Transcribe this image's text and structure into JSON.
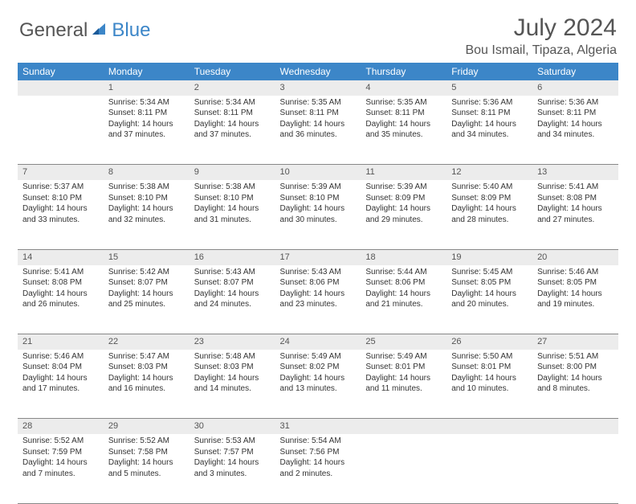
{
  "brand": {
    "general": "General",
    "blue": "Blue"
  },
  "title": "July 2024",
  "location": "Bou Ismail, Tipaza, Algeria",
  "weekdays": [
    "Sunday",
    "Monday",
    "Tuesday",
    "Wednesday",
    "Thursday",
    "Friday",
    "Saturday"
  ],
  "colors": {
    "header_bg": "#3c86c8",
    "header_text": "#ffffff",
    "daynum_bg": "#ececec",
    "body_text": "#333333",
    "title_text": "#555555",
    "rule": "#888888",
    "brand_blue": "#3c86c8",
    "brand_gray": "#555555"
  },
  "weeks": [
    {
      "nums": [
        "",
        "1",
        "2",
        "3",
        "4",
        "5",
        "6"
      ],
      "cells": [
        null,
        {
          "sunrise": "Sunrise: 5:34 AM",
          "sunset": "Sunset: 8:11 PM",
          "day1": "Daylight: 14 hours",
          "day2": "and 37 minutes."
        },
        {
          "sunrise": "Sunrise: 5:34 AM",
          "sunset": "Sunset: 8:11 PM",
          "day1": "Daylight: 14 hours",
          "day2": "and 37 minutes."
        },
        {
          "sunrise": "Sunrise: 5:35 AM",
          "sunset": "Sunset: 8:11 PM",
          "day1": "Daylight: 14 hours",
          "day2": "and 36 minutes."
        },
        {
          "sunrise": "Sunrise: 5:35 AM",
          "sunset": "Sunset: 8:11 PM",
          "day1": "Daylight: 14 hours",
          "day2": "and 35 minutes."
        },
        {
          "sunrise": "Sunrise: 5:36 AM",
          "sunset": "Sunset: 8:11 PM",
          "day1": "Daylight: 14 hours",
          "day2": "and 34 minutes."
        },
        {
          "sunrise": "Sunrise: 5:36 AM",
          "sunset": "Sunset: 8:11 PM",
          "day1": "Daylight: 14 hours",
          "day2": "and 34 minutes."
        }
      ]
    },
    {
      "nums": [
        "7",
        "8",
        "9",
        "10",
        "11",
        "12",
        "13"
      ],
      "cells": [
        {
          "sunrise": "Sunrise: 5:37 AM",
          "sunset": "Sunset: 8:10 PM",
          "day1": "Daylight: 14 hours",
          "day2": "and 33 minutes."
        },
        {
          "sunrise": "Sunrise: 5:38 AM",
          "sunset": "Sunset: 8:10 PM",
          "day1": "Daylight: 14 hours",
          "day2": "and 32 minutes."
        },
        {
          "sunrise": "Sunrise: 5:38 AM",
          "sunset": "Sunset: 8:10 PM",
          "day1": "Daylight: 14 hours",
          "day2": "and 31 minutes."
        },
        {
          "sunrise": "Sunrise: 5:39 AM",
          "sunset": "Sunset: 8:10 PM",
          "day1": "Daylight: 14 hours",
          "day2": "and 30 minutes."
        },
        {
          "sunrise": "Sunrise: 5:39 AM",
          "sunset": "Sunset: 8:09 PM",
          "day1": "Daylight: 14 hours",
          "day2": "and 29 minutes."
        },
        {
          "sunrise": "Sunrise: 5:40 AM",
          "sunset": "Sunset: 8:09 PM",
          "day1": "Daylight: 14 hours",
          "day2": "and 28 minutes."
        },
        {
          "sunrise": "Sunrise: 5:41 AM",
          "sunset": "Sunset: 8:08 PM",
          "day1": "Daylight: 14 hours",
          "day2": "and 27 minutes."
        }
      ]
    },
    {
      "nums": [
        "14",
        "15",
        "16",
        "17",
        "18",
        "19",
        "20"
      ],
      "cells": [
        {
          "sunrise": "Sunrise: 5:41 AM",
          "sunset": "Sunset: 8:08 PM",
          "day1": "Daylight: 14 hours",
          "day2": "and 26 minutes."
        },
        {
          "sunrise": "Sunrise: 5:42 AM",
          "sunset": "Sunset: 8:07 PM",
          "day1": "Daylight: 14 hours",
          "day2": "and 25 minutes."
        },
        {
          "sunrise": "Sunrise: 5:43 AM",
          "sunset": "Sunset: 8:07 PM",
          "day1": "Daylight: 14 hours",
          "day2": "and 24 minutes."
        },
        {
          "sunrise": "Sunrise: 5:43 AM",
          "sunset": "Sunset: 8:06 PM",
          "day1": "Daylight: 14 hours",
          "day2": "and 23 minutes."
        },
        {
          "sunrise": "Sunrise: 5:44 AM",
          "sunset": "Sunset: 8:06 PM",
          "day1": "Daylight: 14 hours",
          "day2": "and 21 minutes."
        },
        {
          "sunrise": "Sunrise: 5:45 AM",
          "sunset": "Sunset: 8:05 PM",
          "day1": "Daylight: 14 hours",
          "day2": "and 20 minutes."
        },
        {
          "sunrise": "Sunrise: 5:46 AM",
          "sunset": "Sunset: 8:05 PM",
          "day1": "Daylight: 14 hours",
          "day2": "and 19 minutes."
        }
      ]
    },
    {
      "nums": [
        "21",
        "22",
        "23",
        "24",
        "25",
        "26",
        "27"
      ],
      "cells": [
        {
          "sunrise": "Sunrise: 5:46 AM",
          "sunset": "Sunset: 8:04 PM",
          "day1": "Daylight: 14 hours",
          "day2": "and 17 minutes."
        },
        {
          "sunrise": "Sunrise: 5:47 AM",
          "sunset": "Sunset: 8:03 PM",
          "day1": "Daylight: 14 hours",
          "day2": "and 16 minutes."
        },
        {
          "sunrise": "Sunrise: 5:48 AM",
          "sunset": "Sunset: 8:03 PM",
          "day1": "Daylight: 14 hours",
          "day2": "and 14 minutes."
        },
        {
          "sunrise": "Sunrise: 5:49 AM",
          "sunset": "Sunset: 8:02 PM",
          "day1": "Daylight: 14 hours",
          "day2": "and 13 minutes."
        },
        {
          "sunrise": "Sunrise: 5:49 AM",
          "sunset": "Sunset: 8:01 PM",
          "day1": "Daylight: 14 hours",
          "day2": "and 11 minutes."
        },
        {
          "sunrise": "Sunrise: 5:50 AM",
          "sunset": "Sunset: 8:01 PM",
          "day1": "Daylight: 14 hours",
          "day2": "and 10 minutes."
        },
        {
          "sunrise": "Sunrise: 5:51 AM",
          "sunset": "Sunset: 8:00 PM",
          "day1": "Daylight: 14 hours",
          "day2": "and 8 minutes."
        }
      ]
    },
    {
      "nums": [
        "28",
        "29",
        "30",
        "31",
        "",
        "",
        ""
      ],
      "cells": [
        {
          "sunrise": "Sunrise: 5:52 AM",
          "sunset": "Sunset: 7:59 PM",
          "day1": "Daylight: 14 hours",
          "day2": "and 7 minutes."
        },
        {
          "sunrise": "Sunrise: 5:52 AM",
          "sunset": "Sunset: 7:58 PM",
          "day1": "Daylight: 14 hours",
          "day2": "and 5 minutes."
        },
        {
          "sunrise": "Sunrise: 5:53 AM",
          "sunset": "Sunset: 7:57 PM",
          "day1": "Daylight: 14 hours",
          "day2": "and 3 minutes."
        },
        {
          "sunrise": "Sunrise: 5:54 AM",
          "sunset": "Sunset: 7:56 PM",
          "day1": "Daylight: 14 hours",
          "day2": "and 2 minutes."
        },
        null,
        null,
        null
      ]
    }
  ]
}
